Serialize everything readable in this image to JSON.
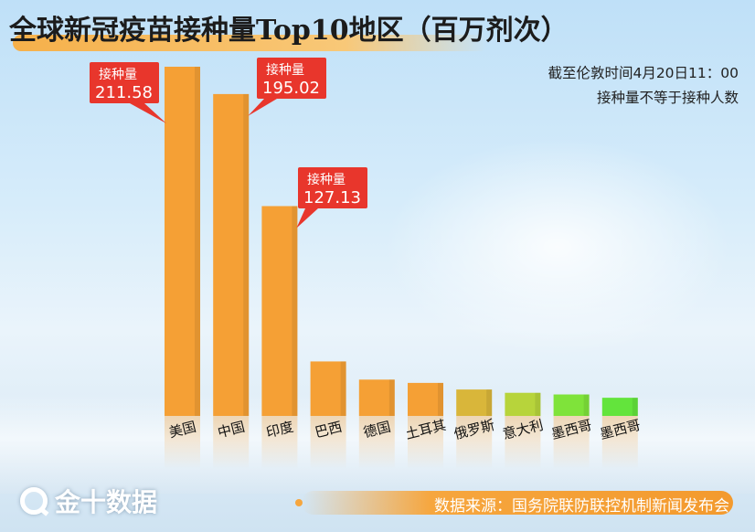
{
  "title": "全球新冠疫苗接种量Top10地区（百万剂次）",
  "notes": {
    "line1": "截至伦敦时间4月20日11：00",
    "line2": "接种量不等于接种人数"
  },
  "footer": {
    "logo_text": "金十数据",
    "source": "数据来源：国务院联防联控机制新闻发布会"
  },
  "chart_data": {
    "type": "bar",
    "categories": [
      "美国",
      "中国",
      "印度",
      "巴西",
      "德国",
      "土耳其",
      "俄罗斯",
      "意大利",
      "墨西哥",
      "墨西哥"
    ],
    "values": [
      211.58,
      195.02,
      127.13,
      33,
      22,
      20,
      16,
      14,
      13,
      11
    ],
    "labelled": [
      {
        "category": "美国",
        "label": "接种量",
        "value": "211.58"
      },
      {
        "category": "中国",
        "label": "接种量",
        "value": "195.02"
      },
      {
        "category": "印度",
        "label": "接种量",
        "value": "127.13"
      }
    ],
    "colors": [
      "#f5a035",
      "#f5a035",
      "#f5a035",
      "#f5a035",
      "#f5a035",
      "#f5a035",
      "#d9b63a",
      "#b7d43b",
      "#7fe33a",
      "#63e43c"
    ],
    "ylim": [
      0,
      230
    ]
  }
}
